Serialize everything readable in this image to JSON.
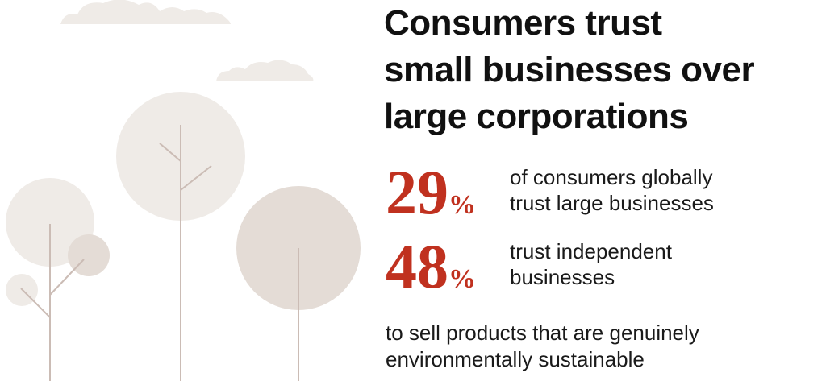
{
  "headline": {
    "line1": "Consumers trust",
    "line2": "small businesses over",
    "line3": "large corporations"
  },
  "stats": [
    {
      "number": "29",
      "unit": "%",
      "line1": "of consumers globally",
      "line2": "trust large businesses"
    },
    {
      "number": "48",
      "unit": "%",
      "line1": "trust independent",
      "line2": "businesses"
    }
  ],
  "footnote": {
    "line1": "to sell products that are genuinely",
    "line2": "environmentally sustainable"
  },
  "colors": {
    "accent": "#c0311f",
    "text": "#111111",
    "illustration_light": "#efebe7",
    "illustration_mid": "#e4dcd6",
    "trunk": "#cbbcb5"
  }
}
